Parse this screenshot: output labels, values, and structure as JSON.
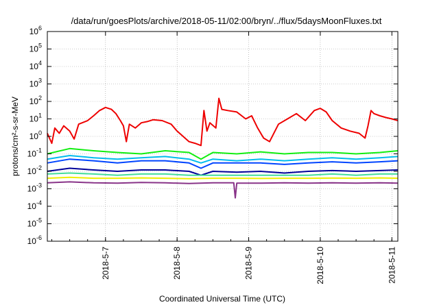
{
  "chart_data": {
    "type": "line",
    "title": "/data/run/goesPlots/archive/2018-05-11/02:00/bryn/../flux/5daysMoonFluxes.txt",
    "xlabel": "Coordinated Universal Time (UTC)",
    "ylabel": "protons/cm²-s-sr-MeV",
    "yscale": "log",
    "ylim": [
      1e-06,
      1000000.0
    ],
    "xlim": [
      "2018-05-06 04:30",
      "2018-05-11 02:00"
    ],
    "x_ticks": [
      "2018-5-7",
      "2018-5-8",
      "2018-5-9",
      "2018-5-10",
      "2018-5-11"
    ],
    "y_ticks": [
      "10-6",
      "10-5",
      "10-4",
      "10-3",
      "10-2",
      "10-1",
      "100",
      "101",
      "102",
      "103",
      "104",
      "105",
      "106"
    ],
    "grid": true,
    "legend": "none",
    "series": [
      {
        "color": "#ee0000",
        "x": [
          "2018-05-06 04:30",
          "2018-05-06 06:00",
          "2018-05-06 07:00",
          "2018-05-06 08:30",
          "2018-05-06 10:00",
          "2018-05-06 12:00",
          "2018-05-06 13:30",
          "2018-05-06 15:00",
          "2018-05-06 18:00",
          "2018-05-06 20:00",
          "2018-05-06 22:00",
          "2018-05-07 00:00",
          "2018-05-07 02:00",
          "2018-05-07 03:30",
          "2018-05-07 05:00",
          "2018-05-07 06:00",
          "2018-05-07 07:00",
          "2018-05-07 08:00",
          "2018-05-07 10:00",
          "2018-05-07 12:00",
          "2018-05-07 14:00",
          "2018-05-07 16:00",
          "2018-05-07 19:00",
          "2018-05-07 22:00",
          "2018-05-08 00:00",
          "2018-05-08 02:00",
          "2018-05-08 04:00",
          "2018-05-08 06:00",
          "2018-05-08 08:00",
          "2018-05-08 09:00",
          "2018-05-08 10:00",
          "2018-05-08 11:00",
          "2018-05-08 13:00",
          "2018-05-08 14:00",
          "2018-05-08 15:00",
          "2018-05-08 17:00",
          "2018-05-08 20:00",
          "2018-05-08 23:00",
          "2018-05-09 01:00",
          "2018-05-09 03:00",
          "2018-05-09 05:00",
          "2018-05-09 07:00",
          "2018-05-09 10:00",
          "2018-05-09 13:00",
          "2018-05-09 16:00",
          "2018-05-09 19:00",
          "2018-05-09 22:00",
          "2018-05-10 00:00",
          "2018-05-10 02:00",
          "2018-05-10 04:00",
          "2018-05-10 07:00",
          "2018-05-10 10:00",
          "2018-05-10 13:00",
          "2018-05-10 15:00",
          "2018-05-10 16:00",
          "2018-05-10 17:00",
          "2018-05-10 18:00",
          "2018-05-10 20:00",
          "2018-05-10 22:00",
          "2018-05-11 00:00",
          "2018-05-11 02:00"
        ],
        "y": [
          1.5,
          0.4,
          3,
          1.5,
          4,
          2,
          0.7,
          5,
          8,
          15,
          30,
          45,
          35,
          20,
          8,
          4,
          0.5,
          5,
          3,
          6,
          7,
          9,
          8,
          5,
          2,
          1,
          0.5,
          0.4,
          0.3,
          30,
          2,
          6,
          3,
          150,
          35,
          30,
          25,
          10,
          15,
          3,
          0.8,
          0.5,
          5,
          10,
          20,
          8,
          30,
          40,
          25,
          8,
          3,
          2,
          1.5,
          0.8,
          4,
          30,
          20,
          15,
          12,
          10,
          8
        ]
      },
      {
        "color": "#11ee11",
        "x": [
          "2018-05-06 04:30",
          "2018-05-06 12:00",
          "2018-05-06 20:00",
          "2018-05-07 04:00",
          "2018-05-07 12:00",
          "2018-05-07 20:00",
          "2018-05-08 04:00",
          "2018-05-08 08:00",
          "2018-05-08 12:00",
          "2018-05-08 20:00",
          "2018-05-09 04:00",
          "2018-05-09 12:00",
          "2018-05-09 20:00",
          "2018-05-10 04:00",
          "2018-05-10 12:00",
          "2018-05-10 20:00",
          "2018-05-11 02:00"
        ],
        "y": [
          0.1,
          0.2,
          0.15,
          0.12,
          0.1,
          0.15,
          0.12,
          0.05,
          0.12,
          0.1,
          0.13,
          0.1,
          0.12,
          0.12,
          0.1,
          0.12,
          0.15
        ]
      },
      {
        "color": "#00bbee",
        "x": [
          "2018-05-06 04:30",
          "2018-05-06 12:00",
          "2018-05-06 20:00",
          "2018-05-07 04:00",
          "2018-05-07 12:00",
          "2018-05-07 20:00",
          "2018-05-08 04:00",
          "2018-05-08 08:00",
          "2018-05-08 12:00",
          "2018-05-08 20:00",
          "2018-05-09 04:00",
          "2018-05-09 12:00",
          "2018-05-09 20:00",
          "2018-05-10 04:00",
          "2018-05-10 12:00",
          "2018-05-10 20:00",
          "2018-05-11 02:00"
        ],
        "y": [
          0.05,
          0.08,
          0.06,
          0.05,
          0.06,
          0.07,
          0.05,
          0.03,
          0.05,
          0.04,
          0.05,
          0.04,
          0.05,
          0.06,
          0.05,
          0.06,
          0.07
        ]
      },
      {
        "color": "#0044ff",
        "x": [
          "2018-05-06 04:30",
          "2018-05-06 12:00",
          "2018-05-06 20:00",
          "2018-05-07 04:00",
          "2018-05-07 12:00",
          "2018-05-07 20:00",
          "2018-05-08 04:00",
          "2018-05-08 08:00",
          "2018-05-08 12:00",
          "2018-05-08 20:00",
          "2018-05-09 04:00",
          "2018-05-09 12:00",
          "2018-05-09 20:00",
          "2018-05-10 04:00",
          "2018-05-10 12:00",
          "2018-05-10 20:00",
          "2018-05-11 02:00"
        ],
        "y": [
          0.03,
          0.05,
          0.04,
          0.03,
          0.04,
          0.04,
          0.03,
          0.015,
          0.03,
          0.03,
          0.03,
          0.025,
          0.03,
          0.035,
          0.03,
          0.035,
          0.04
        ]
      },
      {
        "color": "#000099",
        "x": [
          "2018-05-06 04:30",
          "2018-05-06 12:00",
          "2018-05-06 20:00",
          "2018-05-07 04:00",
          "2018-05-07 12:00",
          "2018-05-07 20:00",
          "2018-05-08 04:00",
          "2018-05-08 08:00",
          "2018-05-08 12:00",
          "2018-05-08 20:00",
          "2018-05-09 04:00",
          "2018-05-09 12:00",
          "2018-05-09 20:00",
          "2018-05-10 04:00",
          "2018-05-10 12:00",
          "2018-05-10 20:00",
          "2018-05-11 02:00"
        ],
        "y": [
          0.01,
          0.015,
          0.012,
          0.01,
          0.012,
          0.012,
          0.01,
          0.006,
          0.01,
          0.009,
          0.01,
          0.008,
          0.01,
          0.011,
          0.01,
          0.011,
          0.012
        ]
      },
      {
        "color": "#44dd99",
        "x": [
          "2018-05-06 04:30",
          "2018-05-06 12:00",
          "2018-05-06 20:00",
          "2018-05-07 04:00",
          "2018-05-07 12:00",
          "2018-05-07 20:00",
          "2018-05-08 04:00",
          "2018-05-08 12:00",
          "2018-05-08 20:00",
          "2018-05-09 04:00",
          "2018-05-09 12:00",
          "2018-05-09 20:00",
          "2018-05-10 04:00",
          "2018-05-10 12:00",
          "2018-05-10 20:00",
          "2018-05-11 02:00"
        ],
        "y": [
          0.007,
          0.008,
          0.007,
          0.006,
          0.007,
          0.007,
          0.006,
          0.006,
          0.006,
          0.006,
          0.006,
          0.006,
          0.007,
          0.006,
          0.007,
          0.007
        ]
      },
      {
        "color": "#eeee00",
        "x": [
          "2018-05-06 04:30",
          "2018-05-06 12:00",
          "2018-05-06 20:00",
          "2018-05-07 04:00",
          "2018-05-07 12:00",
          "2018-05-07 20:00",
          "2018-05-08 04:00",
          "2018-05-08 12:00",
          "2018-05-08 20:00",
          "2018-05-09 04:00",
          "2018-05-09 12:00",
          "2018-05-09 20:00",
          "2018-05-10 04:00",
          "2018-05-10 12:00",
          "2018-05-10 20:00",
          "2018-05-11 02:00"
        ],
        "y": [
          0.004,
          0.0045,
          0.004,
          0.004,
          0.0042,
          0.004,
          0.0038,
          0.004,
          0.004,
          0.0039,
          0.004,
          0.004,
          0.0041,
          0.004,
          0.0042,
          0.004
        ]
      },
      {
        "color": "#883388",
        "x": [
          "2018-05-06 04:30",
          "2018-05-06 12:00",
          "2018-05-06 20:00",
          "2018-05-07 04:00",
          "2018-05-07 12:00",
          "2018-05-07 20:00",
          "2018-05-08 04:00",
          "2018-05-08 12:00",
          "2018-05-08 19:00",
          "2018-05-08 19:30",
          "2018-05-08 20:00",
          "2018-05-09 04:00",
          "2018-05-09 12:00",
          "2018-05-09 20:00",
          "2018-05-10 04:00",
          "2018-05-10 12:00",
          "2018-05-10 20:00",
          "2018-05-11 02:00"
        ],
        "y": [
          0.0022,
          0.0025,
          0.0022,
          0.0021,
          0.0023,
          0.0022,
          0.002,
          0.0022,
          0.0022,
          0.0003,
          0.0021,
          0.0021,
          0.0022,
          0.0021,
          0.0022,
          0.0021,
          0.0022,
          0.0021
        ]
      }
    ]
  }
}
